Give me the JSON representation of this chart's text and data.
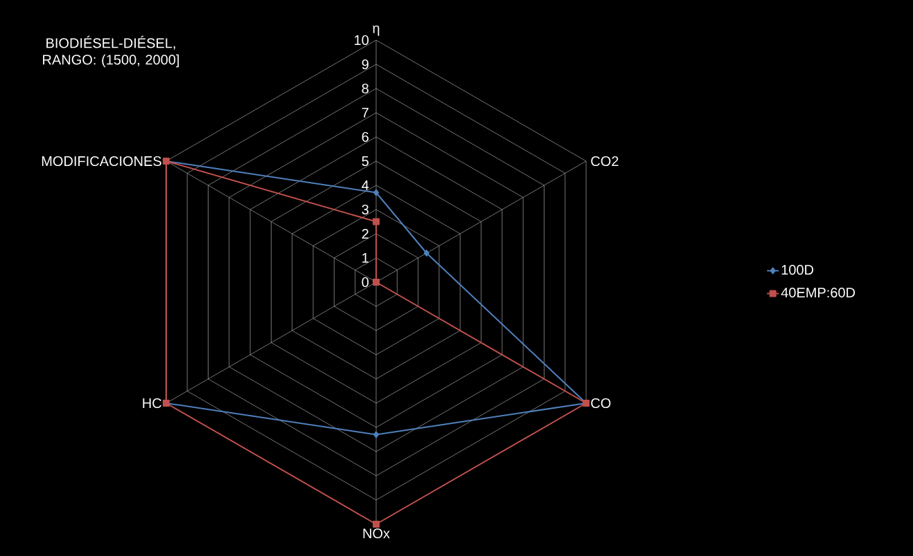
{
  "chart_data": {
    "type": "radar",
    "title": "BIODIÉSEL-DIÉSEL, RANGO: (1500, 2000]",
    "categories": [
      "η",
      "CO2",
      "CO",
      "NOx",
      "HC",
      "MODIFICACIONES"
    ],
    "series": [
      {
        "name": "100D",
        "color": "#4f81bd",
        "values": [
          3.7,
          2.4,
          10,
          6.3,
          10,
          10
        ]
      },
      {
        "name": "40EMP:60D",
        "color": "#c0504d",
        "values": [
          2.5,
          0,
          10,
          10,
          10,
          10
        ]
      }
    ],
    "ylim": [
      0,
      10
    ],
    "yticks": [
      0,
      1,
      2,
      3,
      4,
      5,
      6,
      7,
      8,
      9,
      10
    ],
    "grid": true,
    "legend": "right",
    "marker": "diamond"
  }
}
